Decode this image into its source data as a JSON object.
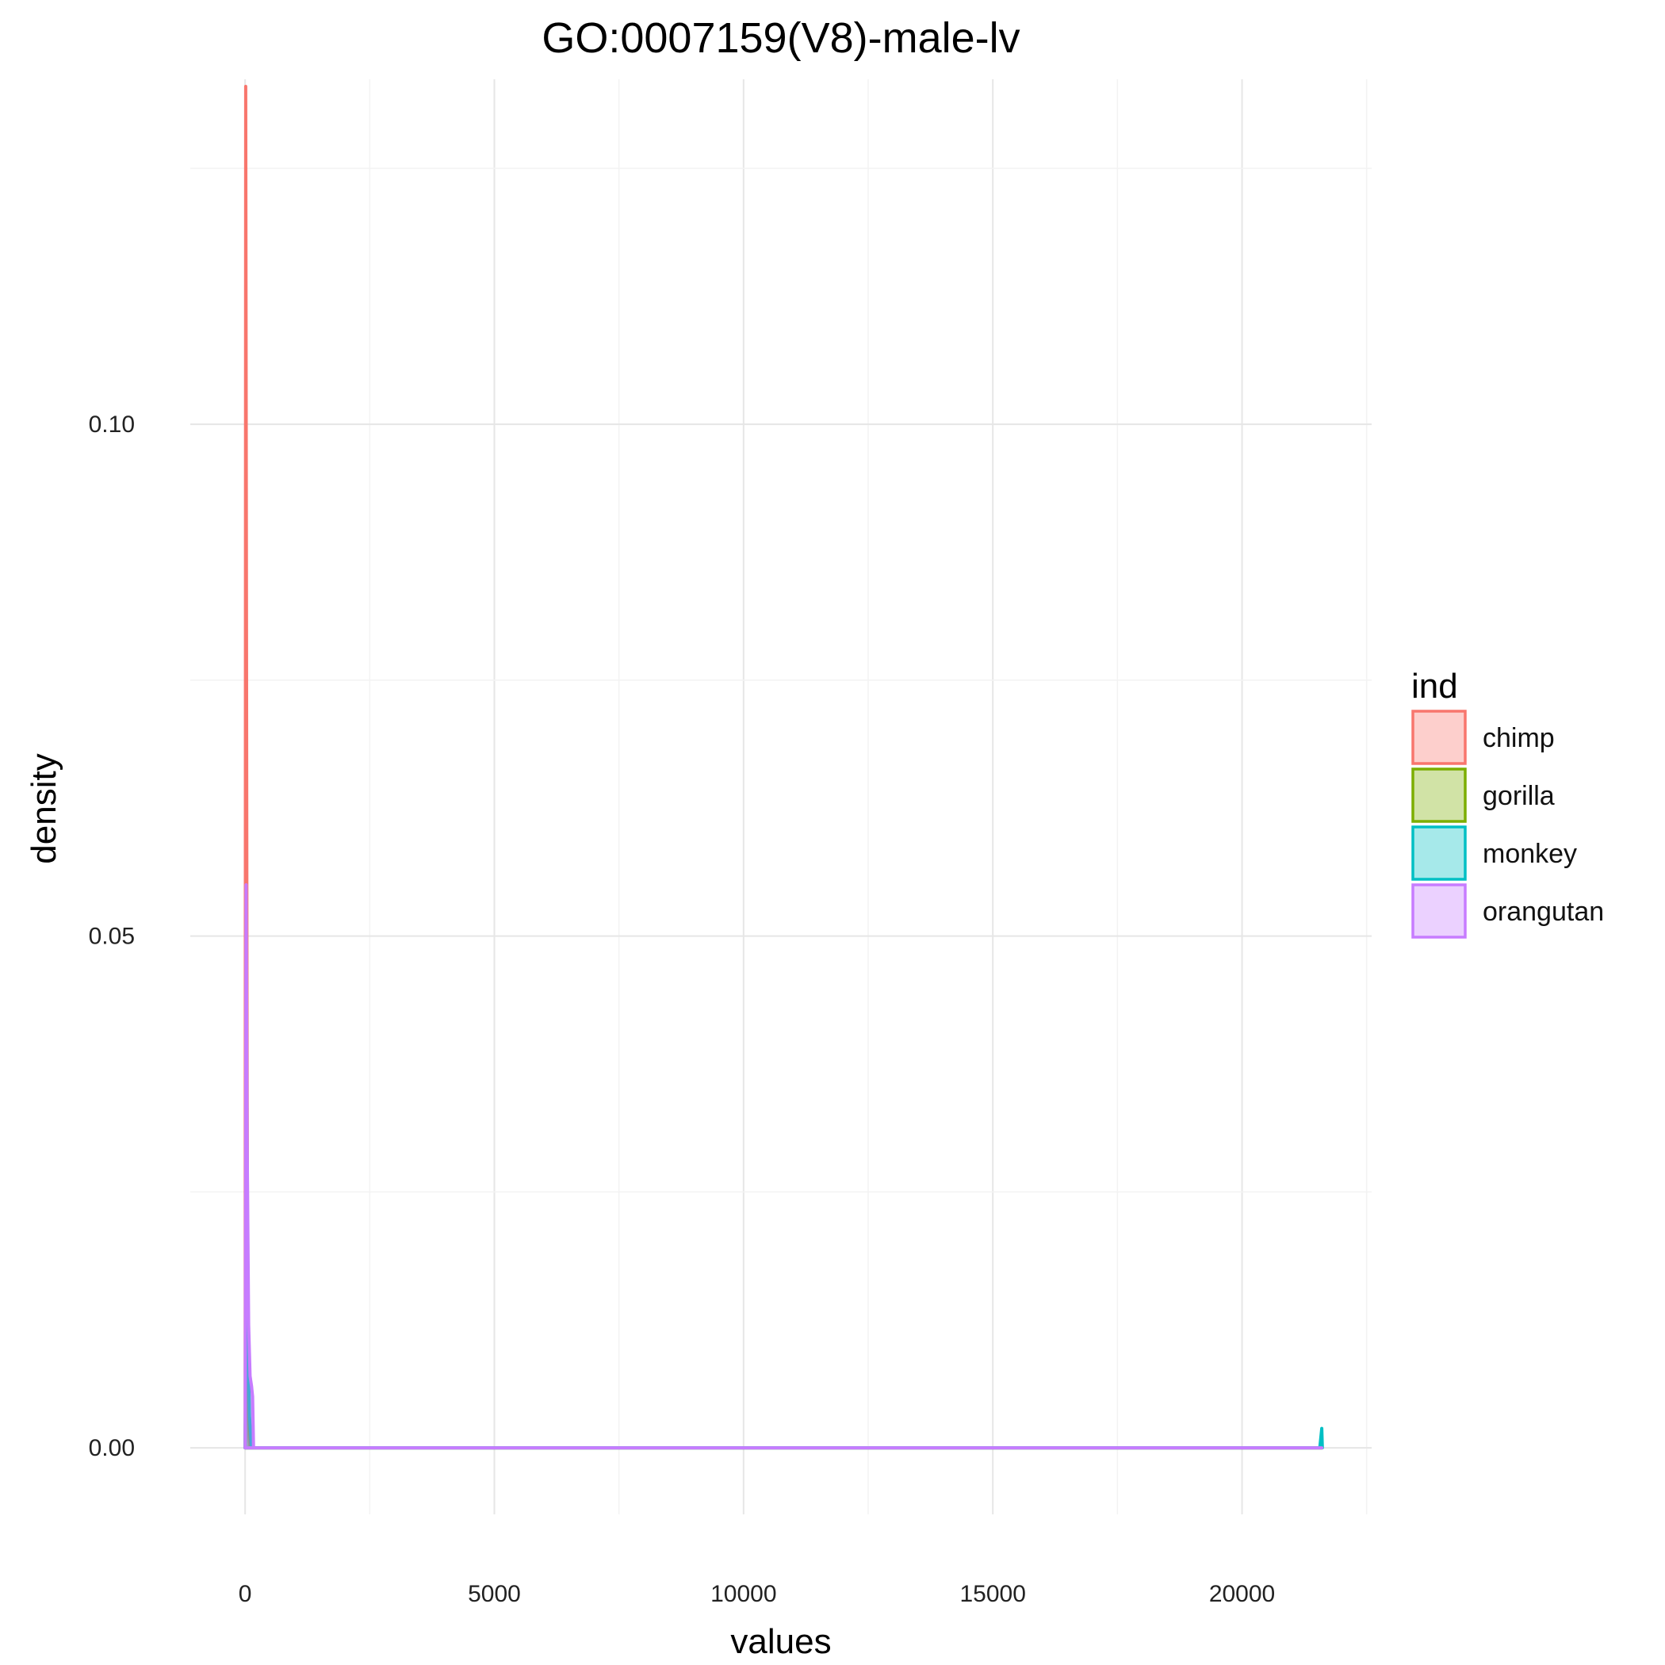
{
  "chart_data": {
    "type": "area",
    "title": "GO:0007159(V8)-male-lv",
    "xlabel": "values",
    "ylabel": "density",
    "xlim": [
      -1100,
      22600
    ],
    "ylim": [
      -0.0065,
      0.1337
    ],
    "x_ticks": [
      0,
      5000,
      10000,
      15000,
      20000
    ],
    "x_tick_labels": [
      "0",
      "5000",
      "10000",
      "15000",
      "20000"
    ],
    "y_ticks": [
      0.0,
      0.05,
      0.1
    ],
    "y_tick_labels": [
      "0.00",
      "0.05",
      "0.10"
    ],
    "grid": true,
    "legend": {
      "title": "ind",
      "position": "right"
    },
    "series": [
      {
        "name": "chimp",
        "color": "#F8766D",
        "x": [
          0,
          12,
          25,
          38,
          50,
          65,
          80,
          100,
          21600
        ],
        "y": [
          0,
          0.133,
          0.09,
          0.045,
          0.015,
          0.004,
          0.001,
          0,
          0
        ]
      },
      {
        "name": "gorilla",
        "color": "#7CAE00",
        "x": [
          0,
          30,
          60,
          90,
          120,
          21600
        ],
        "y": [
          0,
          0.018,
          0.009,
          0.002,
          0,
          0
        ]
      },
      {
        "name": "monkey",
        "color": "#00BFC4",
        "x": [
          0,
          30,
          60,
          90,
          130,
          21560,
          21600,
          21610
        ],
        "y": [
          0,
          0.022,
          0.01,
          0.003,
          0,
          0,
          0.0019,
          0
        ]
      },
      {
        "name": "orangutan",
        "color": "#C77CFF",
        "x": [
          0,
          20,
          40,
          70,
          100,
          130,
          150,
          170,
          21600
        ],
        "y": [
          0,
          0.055,
          0.03,
          0.012,
          0.007,
          0.006,
          0.005,
          0,
          0
        ]
      }
    ]
  }
}
